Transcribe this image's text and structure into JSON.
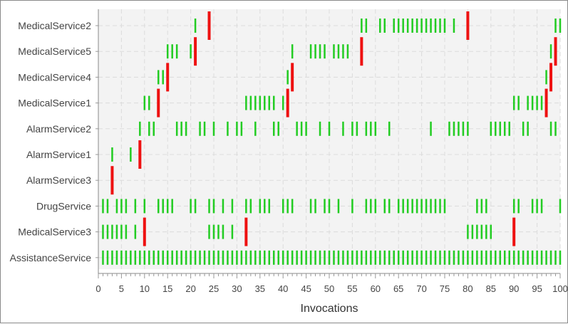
{
  "chart_data": {
    "type": "timeline",
    "xlabel": "Invocations",
    "xlim": [
      0,
      100
    ],
    "x_ticks": [
      0,
      5,
      10,
      15,
      20,
      25,
      30,
      35,
      40,
      45,
      50,
      55,
      60,
      65,
      70,
      75,
      80,
      85,
      90,
      95,
      100
    ],
    "grid": true,
    "colors": {
      "success": "#22cc22",
      "failure": "#ee1111",
      "plot_background": "#f3f3f3",
      "grid": "#dcdcdc"
    },
    "categories": [
      {
        "name": "MedicalService2",
        "success": [
          21,
          57,
          58,
          61,
          62,
          64,
          65,
          66,
          67,
          68,
          69,
          70,
          71,
          72,
          73,
          74,
          75,
          77,
          99,
          100
        ],
        "failure": [
          24,
          80
        ]
      },
      {
        "name": "MedicalService5",
        "success": [
          15,
          16,
          17,
          20,
          42,
          46,
          47,
          48,
          49,
          51,
          52,
          53,
          54,
          98
        ],
        "failure": [
          21,
          57,
          99
        ]
      },
      {
        "name": "MedicalService4",
        "success": [
          13,
          14,
          41,
          97
        ],
        "failure": [
          15,
          42,
          98
        ]
      },
      {
        "name": "MedicalService1",
        "success": [
          10,
          11,
          32,
          33,
          34,
          35,
          36,
          37,
          38,
          40,
          90,
          91,
          93,
          94,
          95,
          96
        ],
        "failure": [
          13,
          41,
          97
        ]
      },
      {
        "name": "AlarmService2",
        "success": [
          9,
          11,
          12,
          17,
          18,
          19,
          22,
          23,
          25,
          28,
          30,
          31,
          34,
          38,
          39,
          43,
          44,
          45,
          48,
          50,
          53,
          55,
          56,
          58,
          59,
          60,
          63,
          72,
          76,
          77,
          78,
          79,
          80,
          85,
          86,
          87,
          88,
          89,
          92,
          93,
          98,
          99
        ],
        "failure": []
      },
      {
        "name": "AlarmService1",
        "success": [
          3,
          7
        ],
        "failure": [
          9
        ]
      },
      {
        "name": "AlarmService3",
        "success": [],
        "failure": [
          3
        ]
      },
      {
        "name": "DrugService",
        "success": [
          1,
          2,
          4,
          5,
          6,
          8,
          10,
          13,
          14,
          15,
          16,
          20,
          21,
          24,
          25,
          27,
          29,
          32,
          33,
          35,
          36,
          37,
          40,
          41,
          42,
          46,
          47,
          49,
          50,
          52,
          55,
          58,
          59,
          60,
          62,
          63,
          65,
          66,
          67,
          68,
          69,
          70,
          71,
          72,
          73,
          74,
          75,
          82,
          83,
          84,
          90,
          91,
          94,
          95,
          96,
          100
        ],
        "failure": []
      },
      {
        "name": "MedicalService3",
        "success": [
          1,
          2,
          3,
          4,
          5,
          6,
          8,
          24,
          25,
          26,
          27,
          29,
          80,
          81,
          82,
          83,
          84,
          85
        ],
        "failure": [
          10,
          32,
          90
        ]
      },
      {
        "name": "AssistanceService",
        "success": "all 1-100",
        "failure": []
      }
    ]
  }
}
